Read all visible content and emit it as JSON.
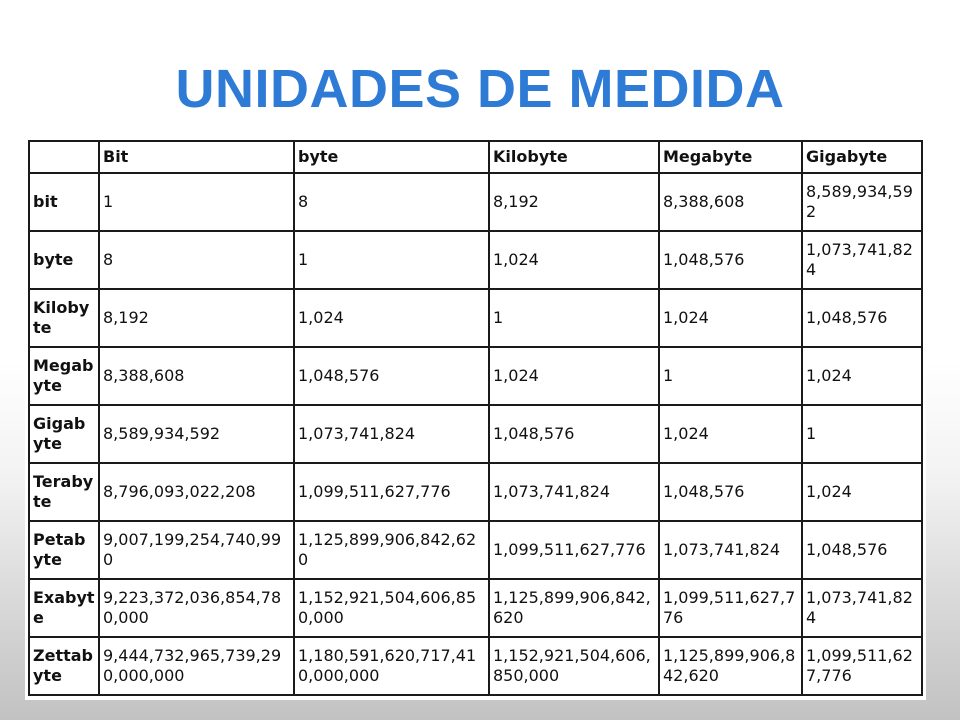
{
  "title": "UNIDADES DE MEDIDA",
  "colors": {
    "title": "#2e7bd6",
    "border": "#1a1a1a",
    "text": "#111111"
  },
  "table": {
    "headers": [
      "",
      "Bit",
      "byte",
      "Kilobyte",
      "Megabyte",
      "Gigabyte"
    ],
    "rows": [
      [
        "bit",
        "1",
        "8",
        "8,192",
        "8,388,608",
        "8,589,934,592"
      ],
      [
        "byte",
        "8",
        "1",
        "1,024",
        "1,048,576",
        "1,073,741,824"
      ],
      [
        "Kilobyte",
        "8,192",
        "1,024",
        "1",
        "1,024",
        "1,048,576"
      ],
      [
        "Megabyte",
        "8,388,608",
        "1,048,576",
        "1,024",
        "1",
        "1,024"
      ],
      [
        "Gigabyte",
        "8,589,934,592",
        "1,073,741,824",
        "1,048,576",
        "1,024",
        "1"
      ],
      [
        "Terabyte",
        "8,796,093,022,208",
        "1,099,511,627,776",
        "1,073,741,824",
        "1,048,576",
        "1,024"
      ],
      [
        "Petabyte",
        "9,007,199,254,740,990",
        "1,125,899,906,842,620",
        "1,099,511,627,776",
        "1,073,741,824",
        "1,048,576"
      ],
      [
        "Exabyte",
        "9,223,372,036,854,780,000",
        "1,152,921,504,606,850,000",
        "1,125,899,906,842,620",
        "1,099,511,627,776",
        "1,073,741,824"
      ],
      [
        "Zettabyte",
        "9,444,732,965,739,290,000,000",
        "1,180,591,620,717,410,000,000",
        "1,152,921,504,606,850,000",
        "1,125,899,906,842,620",
        "1,099,511,627,776"
      ]
    ]
  }
}
